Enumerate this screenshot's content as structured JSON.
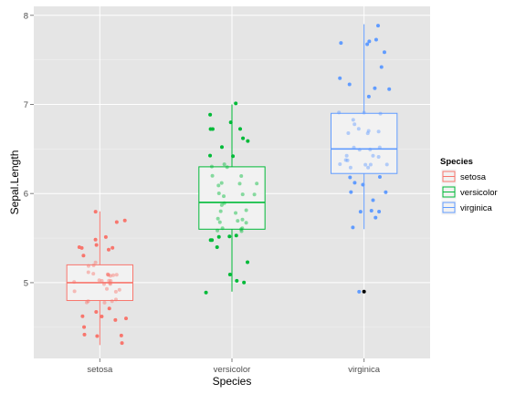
{
  "chart_data": {
    "type": "boxplot",
    "xlabel": "Species",
    "ylabel": "Sepal.Length",
    "ylim": [
      4.15,
      8.1
    ],
    "yticks": [
      5,
      6,
      7,
      8
    ],
    "grid": true,
    "jitter_points": true,
    "legend": {
      "title": "Species",
      "position": "right"
    },
    "categories": [
      "setosa",
      "versicolor",
      "virginica"
    ],
    "series": [
      {
        "name": "setosa",
        "color": "#F8766D",
        "box": {
          "min": 4.3,
          "q1": 4.8,
          "median": 5.0,
          "q3": 5.2,
          "max": 5.8,
          "outliers": []
        },
        "points": [
          5.1,
          4.9,
          4.7,
          4.6,
          5.0,
          5.4,
          4.6,
          5.0,
          4.4,
          4.9,
          5.4,
          4.8,
          4.8,
          4.3,
          5.8,
          5.7,
          5.4,
          5.1,
          5.7,
          5.1,
          5.4,
          5.1,
          4.6,
          5.1,
          4.8,
          5.0,
          5.0,
          5.2,
          5.2,
          4.7,
          4.8,
          5.4,
          5.2,
          5.5,
          4.9,
          5.0,
          5.5,
          4.9,
          4.4,
          5.1,
          5.0,
          4.5,
          4.4,
          5.0,
          5.1,
          4.8,
          5.1,
          4.6,
          5.3,
          5.0
        ]
      },
      {
        "name": "versicolor",
        "color": "#00BA38",
        "box": {
          "min": 4.9,
          "q1": 5.6,
          "median": 5.9,
          "q3": 6.3,
          "max": 7.0,
          "outliers": []
        },
        "points": [
          7.0,
          6.4,
          6.9,
          5.5,
          6.5,
          5.7,
          6.3,
          4.9,
          6.6,
          5.2,
          5.0,
          5.9,
          6.0,
          6.1,
          5.6,
          6.7,
          5.6,
          5.8,
          6.2,
          5.6,
          5.9,
          6.1,
          6.3,
          6.1,
          6.4,
          6.6,
          6.8,
          6.7,
          6.0,
          5.7,
          5.5,
          5.5,
          5.8,
          6.0,
          5.4,
          6.0,
          6.7,
          6.3,
          5.6,
          5.5,
          5.5,
          6.1,
          5.8,
          5.0,
          5.6,
          5.7,
          5.7,
          6.2,
          5.1,
          5.7
        ]
      },
      {
        "name": "virginica",
        "color": "#619CFF",
        "box": {
          "min": 5.6,
          "q1": 6.225,
          "median": 6.5,
          "q3": 6.9,
          "max": 7.9,
          "outliers": [
            4.9
          ]
        },
        "points": [
          6.3,
          5.8,
          7.1,
          6.3,
          6.5,
          7.6,
          7.3,
          6.7,
          7.2,
          6.5,
          6.4,
          6.8,
          5.7,
          5.8,
          6.4,
          6.5,
          7.7,
          7.7,
          6.0,
          6.9,
          5.6,
          7.7,
          6.3,
          6.7,
          7.2,
          6.2,
          6.1,
          6.4,
          7.2,
          7.4,
          7.9,
          6.4,
          6.3,
          6.1,
          7.7,
          6.3,
          6.4,
          6.0,
          6.9,
          6.7,
          6.9,
          5.8,
          6.8,
          6.7,
          6.7,
          6.3,
          6.5,
          6.2,
          5.9,
          4.9
        ]
      }
    ]
  }
}
